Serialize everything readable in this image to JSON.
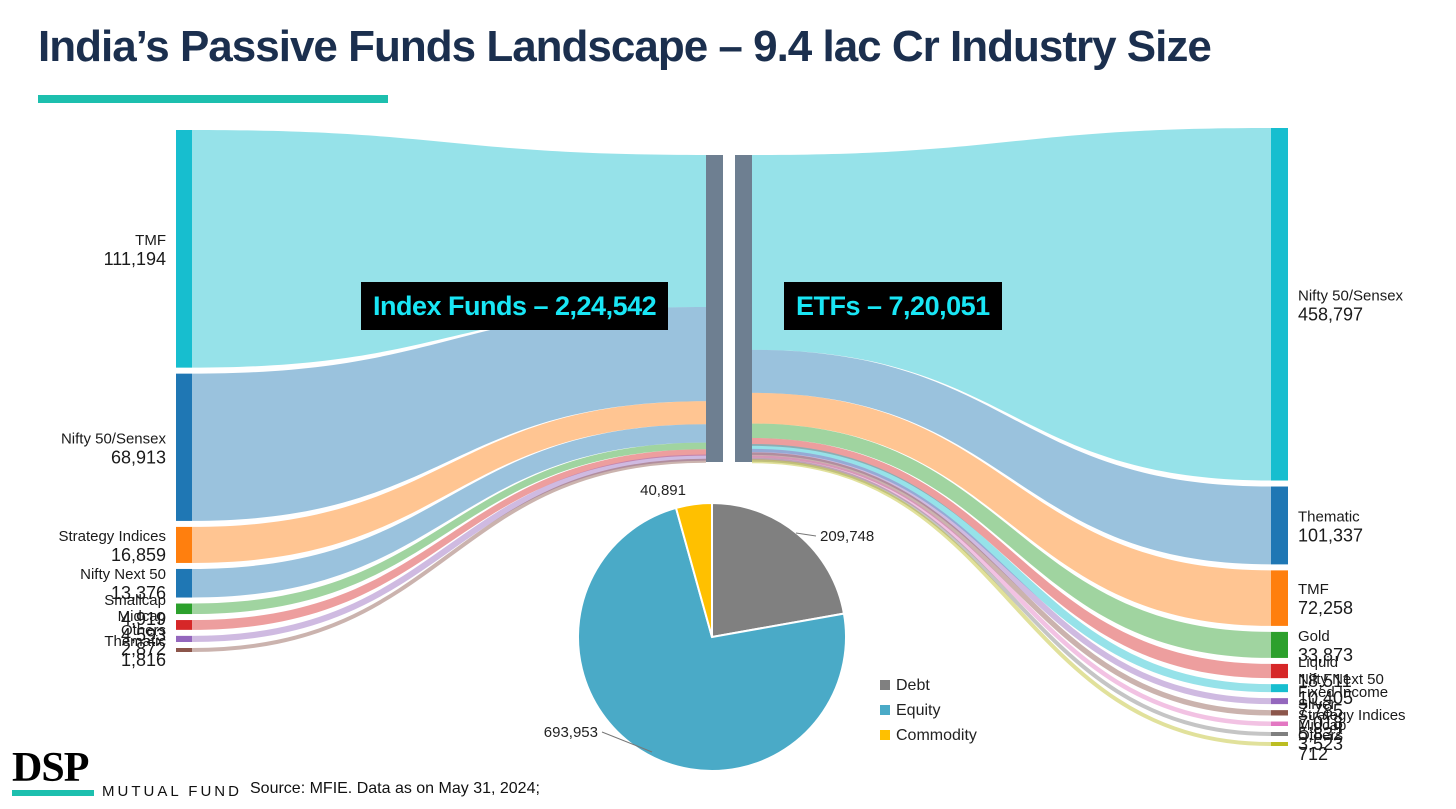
{
  "title": "India’s Passive Funds Landscape – 9.4 lac Cr Industry Size",
  "colors": {
    "title": "#1b2f4e",
    "accent": "#1dbfae",
    "callout_bg": "#000000",
    "callout_text": "#19e6f5",
    "hub": "#6e7f91"
  },
  "callouts": {
    "index_funds": "Index Funds – 2,24,542",
    "etfs": "ETFs – 7,20,051"
  },
  "chart_data": [
    {
      "type": "sankey",
      "title": "India’s Passive Funds Landscape – 9.4 lac Cr Industry Size",
      "hubs": [
        {
          "name": "Index Funds",
          "total_label": "2,24,542"
        },
        {
          "name": "ETFs",
          "total_label": "7,20,051"
        }
      ],
      "index_funds": [
        {
          "name": "TMF",
          "value": 111194,
          "label": "111,194",
          "color": "#17becf"
        },
        {
          "name": "Nifty 50/Sensex",
          "value": 68913,
          "label": "68,913",
          "color": "#1f77b4"
        },
        {
          "name": "Strategy Indices",
          "value": 16859,
          "label": "16,859",
          "color": "#ff7f0e"
        },
        {
          "name": "Nifty Next 50",
          "value": 13376,
          "label": "13,376",
          "color": "#1f77b4"
        },
        {
          "name": "Smallcap",
          "value": 4919,
          "label": "4,919",
          "color": "#2ca02c"
        },
        {
          "name": "Midcap",
          "value": 4593,
          "label": "4,593",
          "color": "#d62728"
        },
        {
          "name": "Others",
          "value": 2872,
          "label": "2,872",
          "color": "#9467bd"
        },
        {
          "name": "Thematic",
          "value": 1816,
          "label": "1,816",
          "color": "#8c564b"
        }
      ],
      "etfs": [
        {
          "name": "Nifty 50/Sensex",
          "value": 458797,
          "label": "458,797",
          "color": "#17becf"
        },
        {
          "name": "Thematic",
          "value": 101337,
          "label": "101,337",
          "color": "#1f77b4"
        },
        {
          "name": "TMF",
          "value": 72258,
          "label": "72,258",
          "color": "#ff7f0e"
        },
        {
          "name": "Gold",
          "value": 33873,
          "label": "33,873",
          "color": "#2ca02c"
        },
        {
          "name": "Liquid",
          "value": 18511,
          "label": "18,511",
          "color": "#d62728"
        },
        {
          "name": "Nifty Next 50",
          "value": 10405,
          "label": "10,405",
          "color": "#17becf"
        },
        {
          "name": "Fixed Income",
          "value": 7785,
          "label": "7,785",
          "color": "#9467bd"
        },
        {
          "name": "Silver",
          "value": 7018,
          "label": "7,018",
          "color": "#8c564b"
        },
        {
          "name": "Strategy Indices",
          "value": 5832,
          "label": "5,832",
          "color": "#e377c2"
        },
        {
          "name": "Midcap",
          "value": 3523,
          "label": "3,523",
          "color": "#7f7f7f"
        },
        {
          "name": "Others",
          "value": 712,
          "label": "712",
          "color": "#bcbd22"
        }
      ]
    },
    {
      "type": "pie",
      "slices": [
        {
          "name": "Debt",
          "value": 209748,
          "label": "209,748",
          "color": "#808080"
        },
        {
          "name": "Equity",
          "value": 693953,
          "label": "693,953",
          "color": "#4aaac7"
        },
        {
          "name": "Commodity",
          "value": 40891,
          "label": "40,891",
          "color": "#ffc000"
        }
      ],
      "legend": [
        "Debt",
        "Equity",
        "Commodity"
      ]
    }
  ],
  "footer": {
    "logo": "DSP",
    "logo_sub": "MUTUAL FUND",
    "source": "Source: MFIE. Data as on May 31, 2024;"
  }
}
